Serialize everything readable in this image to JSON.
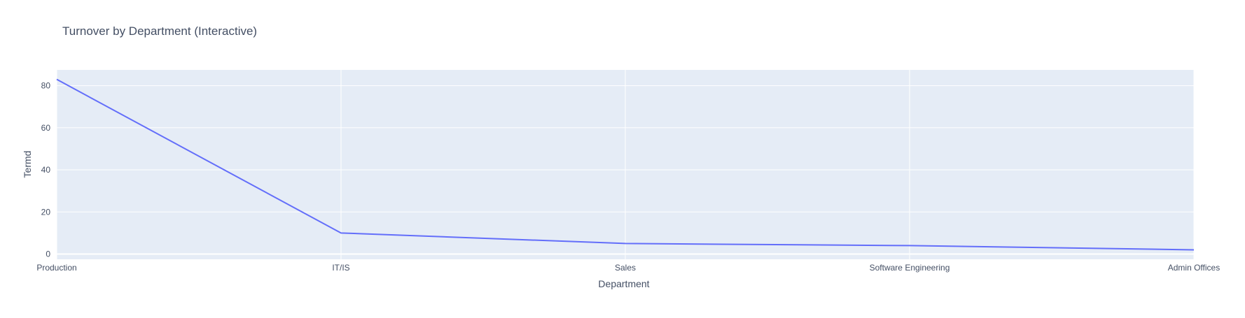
{
  "chart_data": {
    "type": "line",
    "title": "Turnover by Department (Interactive)",
    "xlabel": "Department",
    "ylabel": "Termd",
    "categories": [
      "Production",
      "IT/IS",
      "Sales",
      "Software Engineering",
      "Admin Offices"
    ],
    "series": [
      {
        "values": [
          83,
          10,
          5,
          4,
          2
        ]
      }
    ],
    "ylim": [
      -2.5,
      87.5
    ],
    "yticks": [
      0,
      20,
      40,
      60,
      80
    ],
    "grid": true,
    "colors": {
      "plot_bg": "#e5ecf6",
      "grid": "#ffffff",
      "line": "#636efa",
      "text": "#444f64"
    }
  }
}
